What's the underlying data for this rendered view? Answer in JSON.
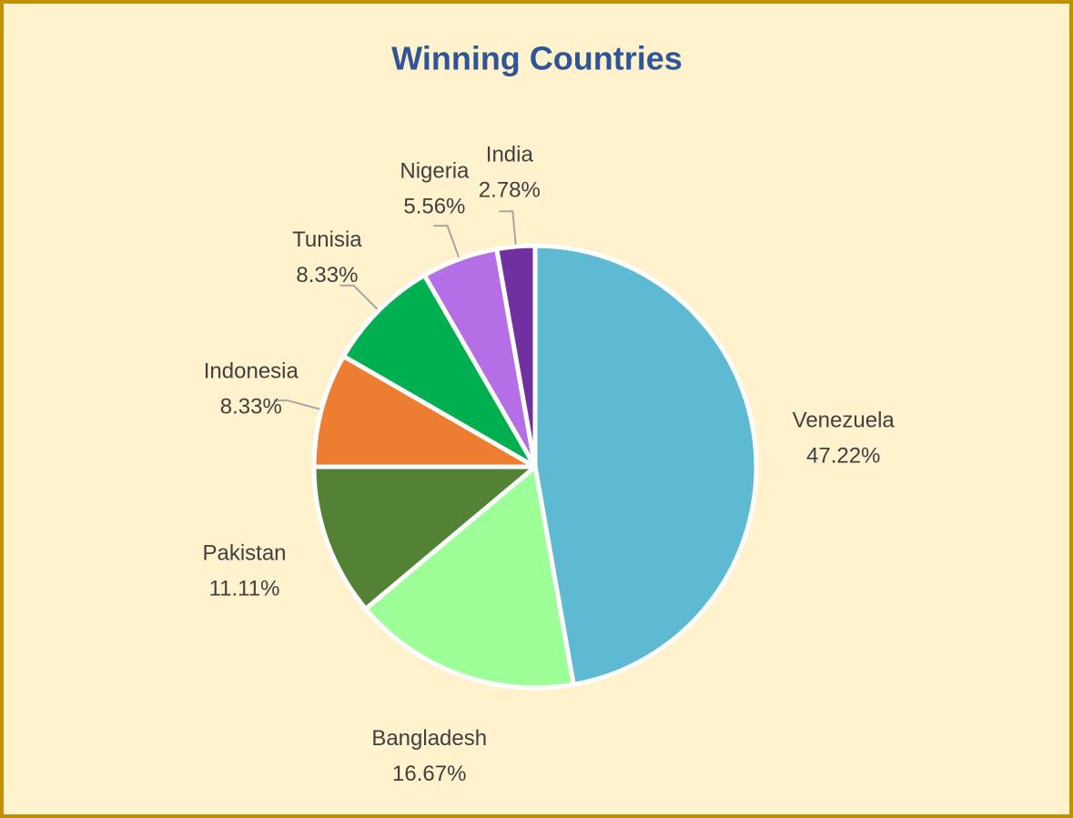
{
  "chart_data": {
    "type": "pie",
    "title": "Winning Countries",
    "categories": [
      "Venezuela",
      "Bangladesh",
      "Pakistan",
      "Indonesia",
      "Tunisia",
      "Nigeria",
      "India"
    ],
    "values": [
      47.22,
      16.67,
      11.11,
      8.33,
      8.33,
      5.56,
      2.78
    ],
    "value_labels": [
      "47.22%",
      "16.67%",
      "11.11%",
      "8.33%",
      "8.33%",
      "5.56%",
      "2.78%"
    ],
    "colors": [
      "#5eb9d3",
      "#9cff98",
      "#548235",
      "#ed7d31",
      "#00b050",
      "#b56fe6",
      "#7030a0"
    ]
  }
}
